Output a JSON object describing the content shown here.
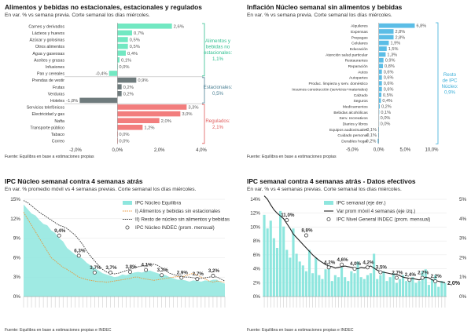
{
  "panels": {
    "p1": {
      "title": "Alimentos y bebidas no estacionales, estacionales y regulados",
      "subtitle": "En var. % vs semana previa. Corte semanal los días miércoles.",
      "source": "Fuente: Equilibra en base a estimaciones propias",
      "callouts": [
        {
          "text": "Alimentos y bebidas no estacionales: 1,1%",
          "lines": [
            "Alimentos y",
            "bebidas no",
            "estacionales:",
            "1,1%"
          ],
          "color": "#2fbf8f"
        },
        {
          "text": "Estacionales: 0,5%",
          "lines": [
            "Estacionales:",
            "0,5%"
          ],
          "color": "#4a7f93"
        },
        {
          "text": "Regulados: 2,1%",
          "lines": [
            "Regulados:",
            "2,1%"
          ],
          "color": "#e05a5a"
        }
      ]
    },
    "p2": {
      "title": "Inflación Núcleo semanal sin alimentos y bebidas",
      "subtitle": "En var. % vs semana previa. Corte semanal los días miércoles.",
      "source": "Fuente: Equilibra en base a estimaciones propias",
      "callout": {
        "text": "Resto de IPC Núcleo: 0,9%",
        "lines": [
          "Resto",
          "de IPC",
          "Núcleo:",
          "0,9%"
        ],
        "color": "#3aaed8"
      }
    },
    "p3": {
      "title": "IPC Núcleo semanal contra 4 semanas atrás",
      "subtitle": "En var. % promedio móvil vs 4 semanas previas. Corte semanal los días miércoles.",
      "source": "Fuente: Equilibra en base a estimaciones propias e INDEC"
    },
    "p4": {
      "title": "IPC semanal contra 4 semanas atrás - Datos efectivos",
      "subtitle": "En var. % vs 4 semanas previas. Corte semanal los días miércoles.",
      "source": "Fuente: Equilibra en base a estimaciones propias e INDEC"
    }
  },
  "colors": {
    "green": "#72e8c2",
    "gray": "#6f7b7d",
    "red": "#f27d7d",
    "blue": "#5bbde6",
    "cyan": "#8ee6de"
  },
  "chart_data": [
    {
      "type": "bar",
      "orientation": "horizontal",
      "title": "Alimentos y bebidas no estacionales, estacionales y regulados",
      "xlim": [
        -2,
        4
      ],
      "xticks": [
        "-2,0%",
        "0,0%",
        "2,0%",
        "4,0%"
      ],
      "groups": [
        {
          "name": "Alimentos y bebidas no estacionales",
          "color": "#72e8c2",
          "categories": [
            "Carnes y derivados",
            "Lácteos y huevos",
            "Azúcar y golosinas",
            "Otros alimentos",
            "Agua y gaseosas",
            "Aceites y grasas",
            "Infusiones",
            "Pan y cereales"
          ],
          "values": [
            2.6,
            0.7,
            0.5,
            0.5,
            0.4,
            0.1,
            0.0,
            -0.4
          ],
          "labels": [
            "2,6%",
            "0,7%",
            "0,5%",
            "0,5%",
            "0,4%",
            "0,1%",
            "0,0%",
            "-0,4%"
          ]
        },
        {
          "name": "Estacionales",
          "color": "#6f7b7d",
          "categories": [
            "Prendas de vestir",
            "Frutas",
            "Verduras",
            "Hoteles"
          ],
          "values": [
            0.9,
            0.2,
            0.2,
            -1.8
          ],
          "labels": [
            "0,9%",
            "0,2%",
            "0,2%",
            "-1,8%"
          ]
        },
        {
          "name": "Regulados",
          "color": "#f27d7d",
          "categories": [
            "Servicios telefónicos",
            "Electricidad y gas",
            "Nafta",
            "Transporte público",
            "Tabaco",
            "Correo"
          ],
          "values": [
            3.3,
            3.0,
            2.0,
            1.2,
            0.0,
            0.0
          ],
          "labels": [
            "3,3%",
            "3,0%",
            "2,0%",
            "1,2%",
            "0,0%",
            "0,0%"
          ]
        }
      ]
    },
    {
      "type": "bar",
      "orientation": "horizontal",
      "title": "Inflación Núcleo semanal sin alimentos y bebidas",
      "xlim": [
        -5,
        10
      ],
      "xticks": [
        "-5,0%",
        "0,0%",
        "5,0%",
        "10,0%"
      ],
      "color": "#5bbde6",
      "categories": [
        "Alquileres",
        "Expensas",
        "Prepagas",
        "Celulares",
        "Educación",
        "Atención salud particular",
        "Restaurantes",
        "Reparación",
        "Autos",
        "Autopartes",
        "Produc. limpieza y serv. doméstico",
        "Insumos construcción (servicios+materiales)",
        "Calzado",
        "Seguros",
        "Medicamentos",
        "Bebidas alcohólicas",
        "Serv. recreativos",
        "Diarios y libros",
        "Equipos audiovisuales",
        "Cuidado personal",
        "Durables hogar"
      ],
      "values": [
        6.8,
        2.8,
        2.8,
        1.9,
        1.5,
        1.3,
        0.9,
        0.8,
        0.6,
        0.6,
        0.6,
        0.6,
        0.5,
        0.4,
        0.2,
        0.1,
        0.0,
        0.0,
        -0.1,
        -0.1,
        -0.2
      ],
      "labels": [
        "6,8%",
        "2,8%",
        "2,8%",
        "1,9%",
        "1,5%",
        "1,3%",
        "0,9%",
        "0,8%",
        "0,6%",
        "0,6%",
        "0,6%",
        "0,6%",
        "0,5%",
        "0,4%",
        "0,2%",
        "0,1%",
        "0,0%",
        "0,0%",
        "-0,1%",
        "-0,1%",
        "-0,2%"
      ]
    },
    {
      "type": "line",
      "title": "IPC Núcleo semanal contra 4 semanas atrás",
      "ylim": [
        0,
        15
      ],
      "yticks": [
        "0%",
        "3%",
        "6%",
        "9%",
        "12%",
        "15%"
      ],
      "legend": {
        "placement": "top-right",
        "entries": [
          "IPC Núcleo Equilibra",
          "I) Alimentos y bebidas sin estacionales",
          "II) Resto de núcleo sin alimentos y bebidas",
          "IPC Núcleo INDEC (prom. mensual)"
        ]
      },
      "series": [
        {
          "name": "IPC Núcleo Equilibra",
          "kind": "area",
          "color": "#8ee6de",
          "values": [
            14.2,
            13.5,
            12.8,
            12.5,
            11.8,
            11.2,
            11.0,
            10.2,
            9.8,
            9.0,
            8.5,
            7.5,
            7.0,
            6.5,
            6.2,
            5.8,
            5.2,
            4.8,
            4.4,
            4.0,
            3.6,
            3.4,
            3.2,
            3.0,
            3.1,
            3.4,
            3.3,
            3.5,
            3.7,
            3.8,
            3.7,
            3.9,
            4.0,
            3.8,
            3.6,
            3.4,
            3.3,
            3.0,
            2.8,
            2.6,
            2.6,
            2.5,
            2.3,
            2.5,
            2.4,
            2.3,
            2.5,
            2.4,
            2.6,
            2.6,
            2.2,
            2.0
          ]
        },
        {
          "name": "I) Alimentos y bebidas sin estacionales",
          "kind": "line",
          "color": "#e8963a",
          "values": [
            13.0,
            12.0,
            11.0,
            10.0,
            9.0,
            8.0,
            7.0,
            6.0,
            5.5,
            5.0,
            4.5,
            4.2,
            3.8,
            3.4,
            3.0,
            2.8,
            2.6,
            2.5,
            2.4,
            2.3,
            2.3,
            2.2,
            2.3,
            2.4,
            2.5,
            2.6,
            2.7,
            2.8,
            3.0,
            3.0,
            2.8,
            2.7,
            2.6,
            2.5,
            2.6,
            2.7,
            2.8,
            2.9,
            3.0,
            3.1,
            3.0,
            3.2,
            3.4,
            3.6,
            3.3,
            3.0,
            2.7,
            2.4,
            2.2,
            2.4,
            2.3,
            2.2
          ]
        },
        {
          "name": "II) Resto de núcleo sin alimentos y bebidas",
          "kind": "line",
          "color": "#333333",
          "values": [
            14.8,
            14.5,
            14.0,
            13.5,
            13.0,
            12.6,
            12.2,
            11.8,
            11.4,
            11.0,
            10.8,
            10.5,
            10.0,
            9.5,
            8.8,
            8.0,
            7.0,
            6.2,
            5.5,
            4.8,
            4.2,
            3.8,
            3.6,
            3.5,
            3.6,
            3.8,
            4.0,
            4.2,
            4.4,
            4.6,
            4.7,
            4.8,
            4.9,
            5.0,
            4.8,
            4.4,
            4.0,
            3.6,
            3.4,
            3.2,
            3.1,
            3.0,
            3.0,
            2.9,
            2.8,
            2.8,
            2.9,
            3.0,
            3.1,
            3.0,
            2.7,
            2.4
          ]
        },
        {
          "name": "IPC Núcleo INDEC (prom. mensual)",
          "kind": "markers",
          "color": "#444444",
          "points": [
            {
              "x": 9,
              "y": 9.4,
              "label": "9,4%"
            },
            {
              "x": 14,
              "y": 6.3,
              "label": "6,3%"
            },
            {
              "x": 18,
              "y": 3.7,
              "label": "3,7%"
            },
            {
              "x": 22,
              "y": 3.7,
              "label": "3,7%"
            },
            {
              "x": 27,
              "y": 3.8,
              "label": "3,8%"
            },
            {
              "x": 31,
              "y": 4.1,
              "label": "4,1%"
            },
            {
              "x": 35,
              "y": 3.3,
              "label": "3,3%"
            },
            {
              "x": 40,
              "y": 2.9,
              "label": "2,9%"
            },
            {
              "x": 44,
              "y": 2.7,
              "label": "2,7%"
            },
            {
              "x": 48,
              "y": 3.2,
              "label": "3,2%"
            }
          ]
        }
      ]
    },
    {
      "type": "line",
      "title": "IPC semanal contra 4 semanas atrás - Datos efectivos",
      "ylim_left": [
        0,
        14
      ],
      "ylim_right": [
        0,
        5
      ],
      "yticks_left": [
        "0%",
        "2%",
        "4%",
        "6%",
        "8%",
        "10%",
        "12%",
        "14%"
      ],
      "yticks_right": [
        "0%",
        "1%",
        "2%",
        "3%",
        "4%",
        "5%"
      ],
      "legend": {
        "placement": "top-right",
        "entries": [
          "IPC semanal (eje der.)",
          "Var prom móvil 4 semanas (eje izq.)",
          "IPC Nivel General INDEC (prom. mensual)"
        ]
      },
      "end_label": "2,0%",
      "series": [
        {
          "name": "IPC semanal (eje der.)",
          "axis": "right",
          "kind": "bar",
          "color": "#8ee6de",
          "values": [
            4.2,
            3.5,
            3.9,
            3.0,
            2.5,
            4.4,
            3.6,
            2.4,
            2.0,
            3.5,
            2.2,
            1.8,
            1.6,
            1.3,
            2.4,
            1.2,
            2.0,
            1.1,
            0.9,
            1.4,
            1.6,
            0.8,
            1.1,
            1.0,
            1.5,
            1.0,
            0.8,
            1.3,
            1.2,
            1.8,
            1.0,
            0.9,
            1.1,
            1.2,
            2.2,
            0.9,
            1.1,
            1.3,
            0.8,
            1.0,
            1.2,
            0.7,
            0.9,
            1.1,
            0.8,
            0.9,
            1.0,
            0.7,
            0.8,
            1.3,
            1.4,
            0.6,
            0.9,
            1.1,
            0.5,
            0.8,
            0.7
          ]
        },
        {
          "name": "Var prom móvil 4 semanas (eje izq.)",
          "axis": "left",
          "kind": "line",
          "color": "#222222",
          "values": [
            14.5,
            14.0,
            13.2,
            12.5,
            12.0,
            11.6,
            11.2,
            10.5,
            9.8,
            9.0,
            8.5,
            8.0,
            7.5,
            7.0,
            6.5,
            6.0,
            5.6,
            5.2,
            4.9,
            4.6,
            4.4,
            4.3,
            4.1,
            4.2,
            4.3,
            4.4,
            4.3,
            4.2,
            4.1,
            4.0,
            4.2,
            4.1,
            4.3,
            4.4,
            4.1,
            3.8,
            3.6,
            3.5,
            3.4,
            3.3,
            3.2,
            3.2,
            3.0,
            2.8,
            2.7,
            2.6,
            2.6,
            2.5,
            2.4,
            2.6,
            2.8,
            2.7,
            2.4,
            2.3,
            2.2,
            2.1,
            2.0
          ]
        },
        {
          "name": "IPC Nivel General INDEC (prom. mensual)",
          "axis": "left",
          "kind": "markers",
          "color": "#444444",
          "points": [
            {
              "x": 7,
              "y": 11.0,
              "label": "11,0%"
            },
            {
              "x": 13,
              "y": 8.8,
              "label": "8,8%"
            },
            {
              "x": 20,
              "y": 4.2,
              "label": "4,2%"
            },
            {
              "x": 24,
              "y": 4.6,
              "label": "4,6%"
            },
            {
              "x": 28,
              "y": 4.0,
              "label": "4,0%"
            },
            {
              "x": 32,
              "y": 4.2,
              "label": "4,2%"
            },
            {
              "x": 36,
              "y": 3.5,
              "label": "3,5%"
            },
            {
              "x": 41,
              "y": 2.7,
              "label": "2,7%"
            },
            {
              "x": 45,
              "y": 2.4,
              "label": "2,4%"
            },
            {
              "x": 49,
              "y": 2.7,
              "label": "2,7%"
            },
            {
              "x": 53,
              "y": 2.2,
              "label": "2,2%"
            }
          ]
        }
      ]
    }
  ]
}
